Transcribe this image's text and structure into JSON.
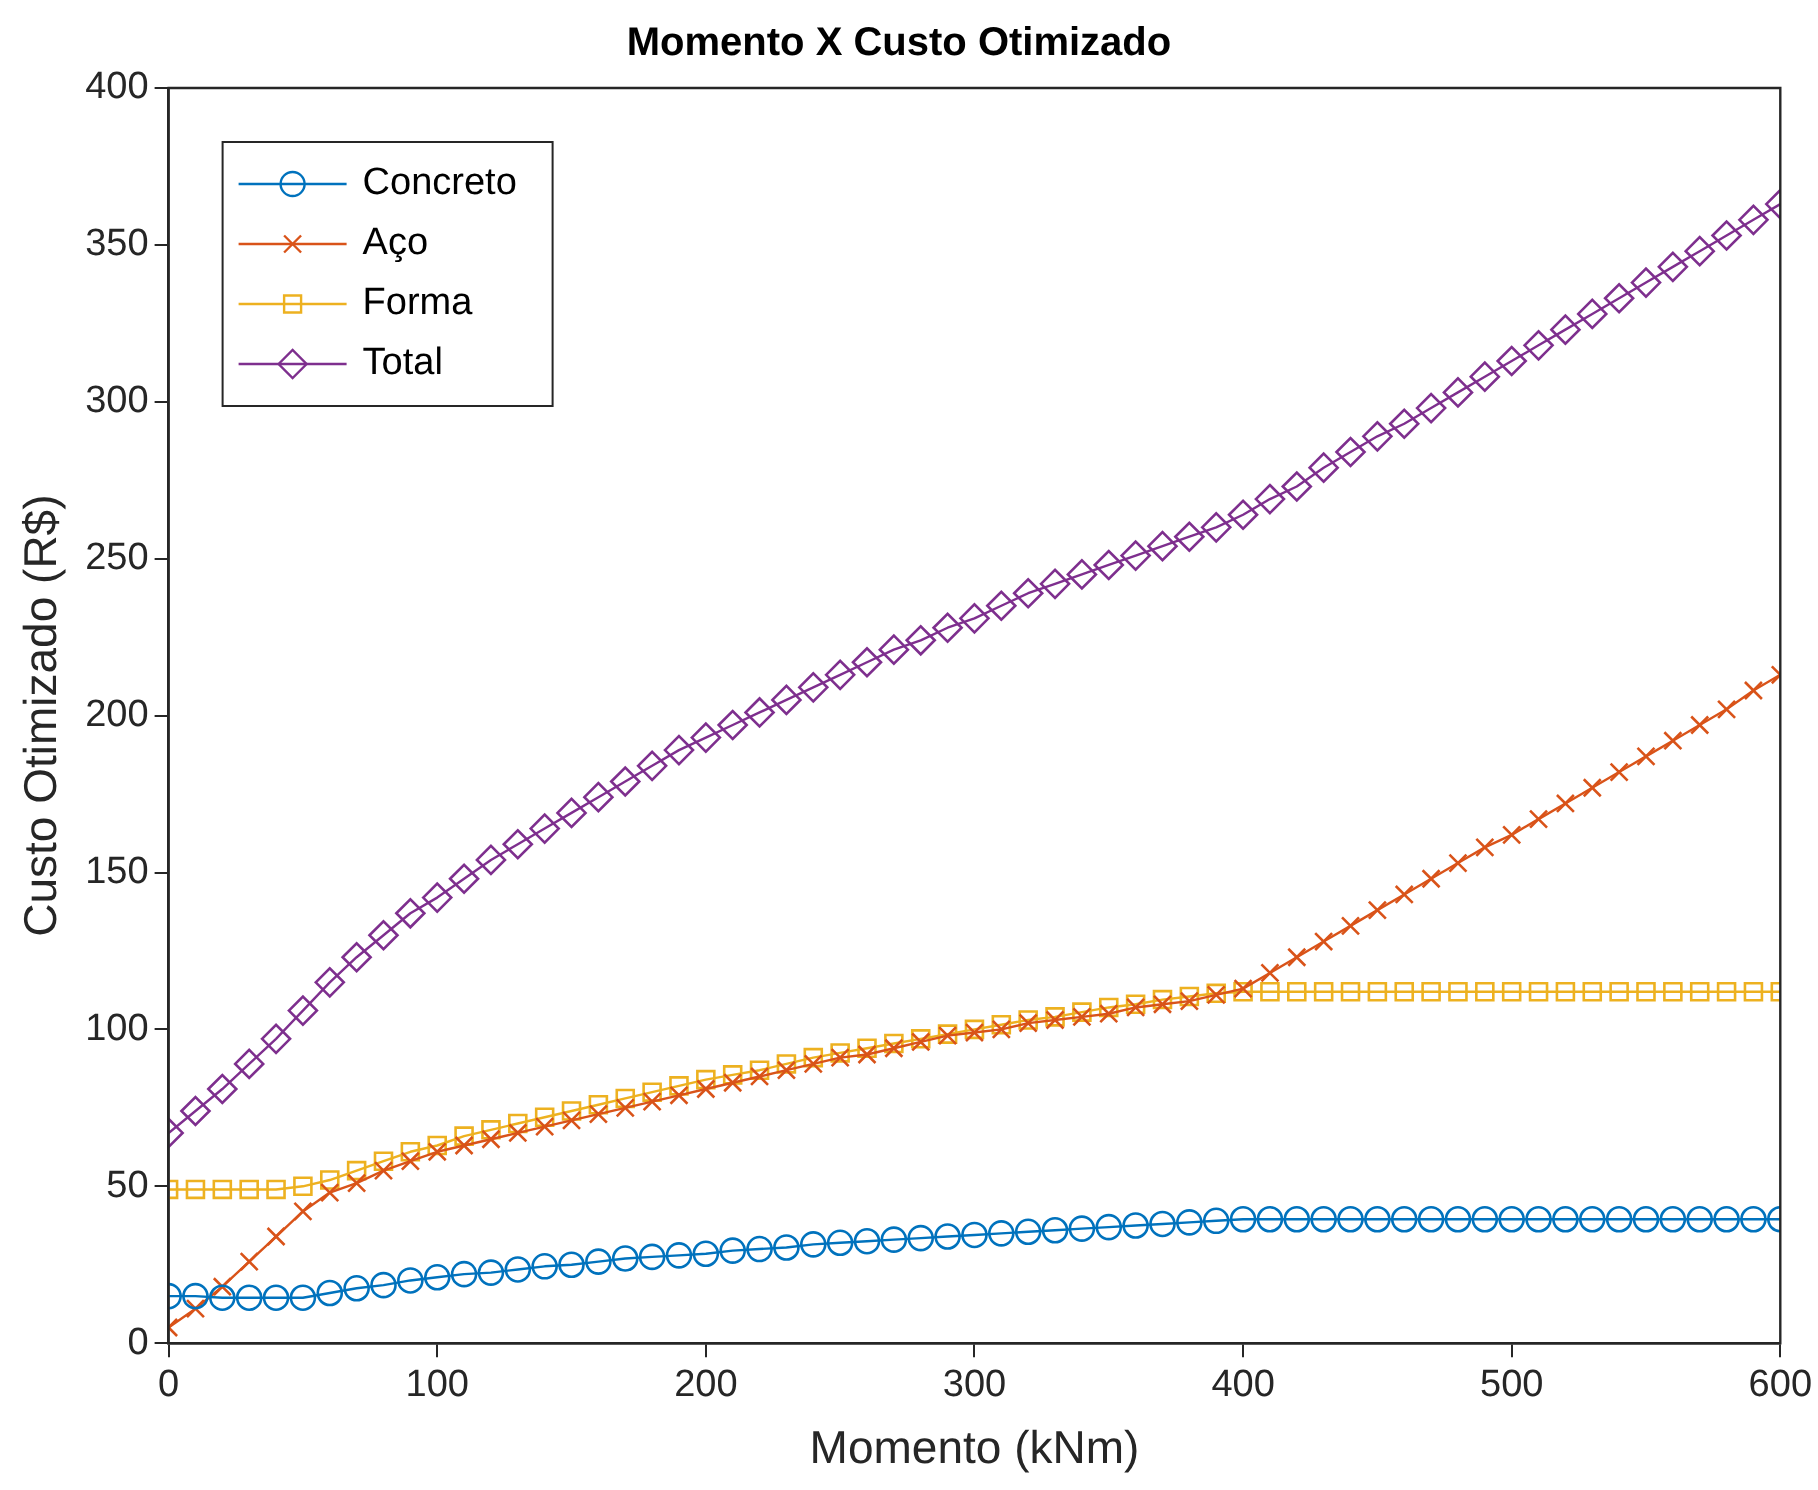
{
  "chart_data": {
    "type": "line",
    "title": "Momento X Custo Otimizado",
    "xlabel": "Momento (kNm)",
    "ylabel": "Custo Otimizado (R$)",
    "x": [
      0,
      10,
      20,
      30,
      40,
      50,
      60,
      70,
      80,
      90,
      100,
      110,
      120,
      130,
      140,
      150,
      160,
      170,
      180,
      190,
      200,
      210,
      220,
      230,
      240,
      250,
      260,
      270,
      280,
      290,
      300,
      310,
      320,
      330,
      340,
      350,
      360,
      370,
      380,
      390,
      400,
      410,
      420,
      430,
      440,
      450,
      460,
      470,
      480,
      490,
      500,
      510,
      520,
      530,
      540,
      550,
      560,
      570,
      580,
      590,
      600
    ],
    "series": [
      {
        "name": "Concreto",
        "color": "#0072bd",
        "marker": "circle",
        "values": [
          15,
          15,
          14.5,
          14.5,
          14.5,
          14.5,
          16,
          17.5,
          18.5,
          20,
          21,
          22,
          22.5,
          23.5,
          24.5,
          25,
          26,
          27,
          27.5,
          28,
          28.5,
          29.5,
          30,
          30.5,
          31.5,
          32,
          32.5,
          33,
          33.5,
          34,
          34.5,
          35,
          35.5,
          36,
          36.5,
          37,
          37.5,
          38,
          38.5,
          39,
          39.5,
          39.5,
          39.5,
          39.5,
          39.5,
          39.5,
          39.5,
          39.5,
          39.5,
          39.5,
          39.5,
          39.5,
          39.5,
          39.5,
          39.5,
          39.5,
          39.5,
          39.5,
          39.5,
          39.5,
          39.5
        ]
      },
      {
        "name": "Aço",
        "color": "#d95319",
        "marker": "cross",
        "values": [
          5,
          11,
          18,
          26,
          34,
          42,
          48,
          51,
          55,
          58,
          61,
          63,
          65,
          67,
          69,
          71,
          73,
          75,
          77,
          79,
          81,
          83,
          85,
          87,
          89,
          91,
          92,
          94,
          96,
          98,
          99,
          100,
          102,
          103,
          104,
          105,
          107,
          108,
          109,
          111,
          113,
          118,
          123,
          128,
          133,
          138,
          143,
          148,
          153,
          158,
          162,
          167,
          172,
          177,
          182,
          187,
          192,
          197,
          202,
          208,
          213
        ]
      },
      {
        "name": "Forma",
        "color": "#edb120",
        "marker": "square",
        "values": [
          49,
          49,
          49,
          49,
          49,
          50,
          52,
          55,
          58,
          61,
          63,
          66,
          68,
          70,
          72,
          74,
          76,
          78,
          80,
          82,
          84,
          85.5,
          87,
          89,
          91,
          92.5,
          94,
          95.5,
          97,
          98.5,
          100,
          101.5,
          103,
          104,
          105.5,
          107,
          108,
          109.5,
          110.5,
          111.5,
          112,
          112,
          112,
          112,
          112,
          112,
          112,
          112,
          112,
          112,
          112,
          112,
          112,
          112,
          112,
          112,
          112,
          112,
          112,
          112,
          112
        ]
      },
      {
        "name": "Total",
        "color": "#7e2f8e",
        "marker": "diamond",
        "values": [
          67,
          74,
          81,
          89,
          97,
          106,
          115,
          123,
          130,
          137,
          142,
          148,
          154,
          159,
          164,
          169,
          174,
          179,
          184,
          189,
          193,
          197,
          201,
          205,
          209,
          213,
          217,
          221,
          224,
          228,
          231,
          235,
          239,
          242,
          245,
          248,
          251,
          254,
          257,
          260,
          264,
          269,
          273,
          279,
          284,
          289,
          293,
          298,
          303,
          308,
          313,
          318,
          323,
          328,
          333,
          338,
          343,
          348,
          353,
          358,
          363
        ]
      }
    ],
    "xlim": [
      0,
      600
    ],
    "xticks": [
      0,
      100,
      200,
      300,
      400,
      500,
      600
    ],
    "ylim": [
      0,
      400
    ],
    "yticks": [
      0,
      50,
      100,
      150,
      200,
      250,
      300,
      350,
      400
    ],
    "grid": false,
    "legend": "top left",
    "line_style": "solid"
  }
}
